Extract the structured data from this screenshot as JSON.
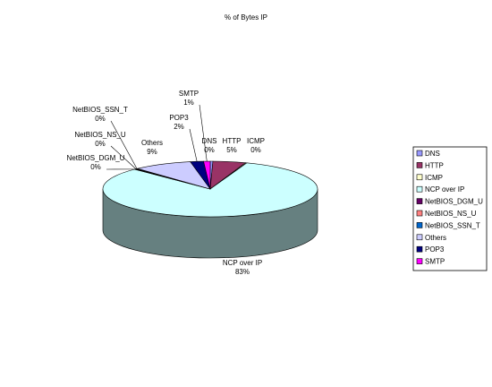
{
  "chart_data": {
    "type": "pie",
    "title": "% of Bytes IP",
    "legend_position": "right",
    "slices": [
      {
        "name": "DNS",
        "value": 0.4,
        "pct_label": "0%",
        "color": "#9999ff"
      },
      {
        "name": "HTTP",
        "value": 5,
        "pct_label": "5%",
        "color": "#993366"
      },
      {
        "name": "ICMP",
        "value": 0.2,
        "pct_label": "0%",
        "color": "#ffffcc"
      },
      {
        "name": "NCP over IP",
        "value": 83,
        "pct_label": "83%",
        "color": "#ccffff"
      },
      {
        "name": "NetBIOS_DGM_U",
        "value": 0.2,
        "pct_label": "0%",
        "color": "#660066"
      },
      {
        "name": "NetBIOS_NS_U",
        "value": 0.2,
        "pct_label": "0%",
        "color": "#ff8080"
      },
      {
        "name": "NetBIOS_SSN_T",
        "value": 0.2,
        "pct_label": "0%",
        "color": "#0066cc"
      },
      {
        "name": "Others",
        "value": 9,
        "pct_label": "9%",
        "color": "#ccccff"
      },
      {
        "name": "POP3",
        "value": 2,
        "pct_label": "2%",
        "color": "#000080"
      },
      {
        "name": "SMTP",
        "value": 1,
        "pct_label": "1%",
        "color": "#ff00ff"
      }
    ]
  }
}
